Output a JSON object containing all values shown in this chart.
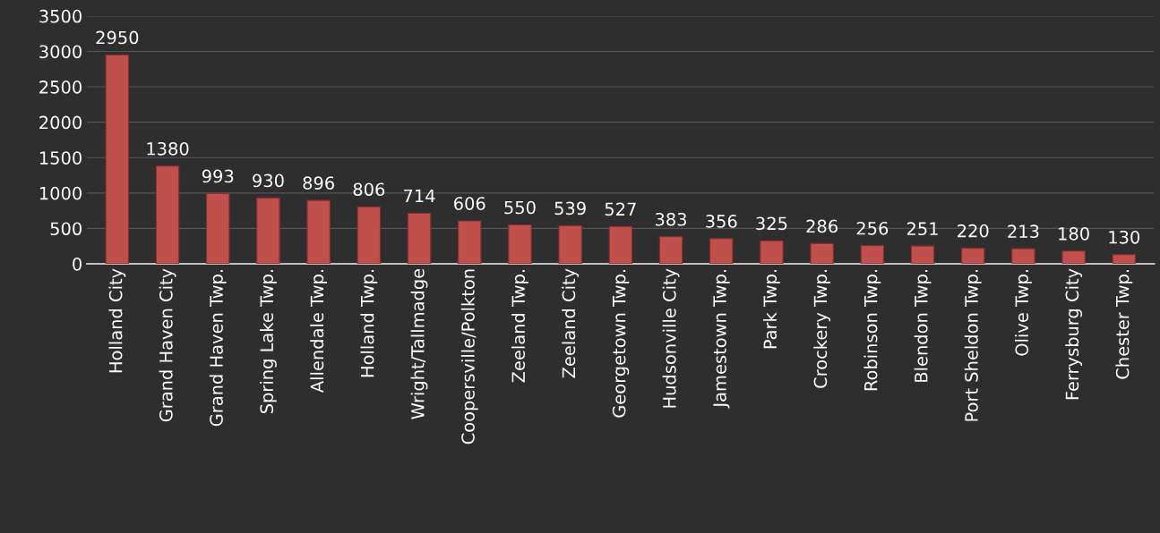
{
  "chart_data": {
    "type": "bar",
    "categories": [
      "Holland City",
      "Grand Haven City",
      "Grand Haven Twp.",
      "Spring Lake Twp.",
      "Allendale Twp.",
      "Holland Twp.",
      "Wright/Tallmadge",
      "Coopersville/Polkton",
      "Zeeland Twp.",
      "Zeeland City",
      "Georgetown Twp.",
      "Hudsonville City",
      "Jamestown Twp.",
      "Park Twp.",
      "Crockery Twp.",
      "Robinson Twp.",
      "Blendon Twp.",
      "Port Sheldon Twp.",
      "Olive Twp.",
      "Ferrysburg City",
      "Chester Twp."
    ],
    "values": [
      2950,
      1380,
      993,
      930,
      896,
      806,
      714,
      606,
      550,
      539,
      527,
      383,
      356,
      325,
      286,
      256,
      251,
      220,
      213,
      180,
      130
    ],
    "color": "#c0504d",
    "ylim": [
      0,
      3500
    ],
    "yticks": [
      0,
      500,
      1000,
      1500,
      2000,
      2500,
      3000,
      3500
    ],
    "grid": "y",
    "data_labels": true
  }
}
